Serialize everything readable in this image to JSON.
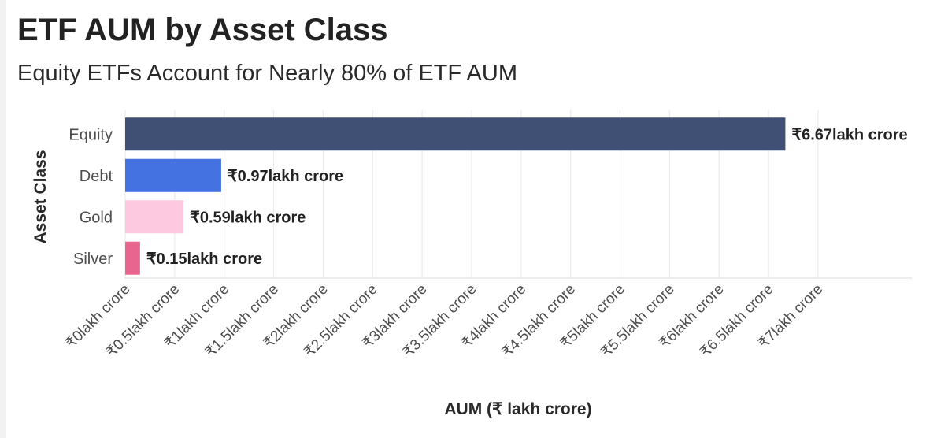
{
  "chart_data": {
    "type": "bar",
    "orientation": "horizontal",
    "title": "ETF AUM by Asset Class",
    "subtitle": "Equity ETFs Account for Nearly 80% of ETF AUM",
    "xlabel": "AUM (₹ lakh crore)",
    "ylabel": "Asset Class",
    "categories": [
      "Equity",
      "Debt",
      "Gold",
      "Silver"
    ],
    "values": [
      6.67,
      0.97,
      0.59,
      0.15
    ],
    "data_labels": [
      "₹6.67lakh crore",
      "₹0.97lakh crore",
      "₹0.59lakh crore",
      "₹0.15lakh crore"
    ],
    "colors": [
      "#3f5074",
      "#4472e0",
      "#fdc9e0",
      "#e8658f"
    ],
    "xlim": [
      0,
      7
    ],
    "x_ticks": [
      0,
      0.5,
      1,
      1.5,
      2,
      2.5,
      3,
      3.5,
      4,
      4.5,
      5,
      5.5,
      6,
      6.5,
      7
    ],
    "x_tick_labels": [
      "₹0lakh crore",
      "₹0.5lakh crore",
      "₹1lakh crore",
      "₹1.5lakh crore",
      "₹2lakh crore",
      "₹2.5lakh crore",
      "₹3lakh crore",
      "₹3.5lakh crore",
      "₹4lakh crore",
      "₹4.5lakh crore",
      "₹5lakh crore",
      "₹5.5lakh crore",
      "₹6lakh crore",
      "₹6.5lakh crore",
      "₹7lakh crore"
    ],
    "grid": true,
    "legend": "none"
  }
}
